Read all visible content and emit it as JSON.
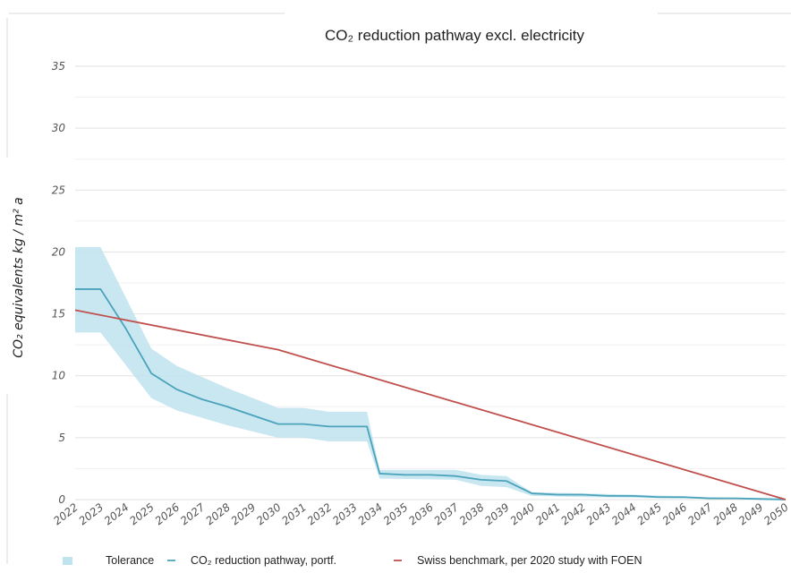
{
  "chart_data": {
    "type": "line",
    "title": "CO₂ reduction pathway  excl. electricity",
    "ylabel": "CO₂ equivalents kg / m² a",
    "xlabel": "",
    "ylim": [
      0,
      35
    ],
    "yticks": [
      0,
      5,
      10,
      15,
      20,
      25,
      30,
      35
    ],
    "x": [
      2022,
      2023,
      2024,
      2025,
      2026,
      2027,
      2028,
      2029,
      2030,
      2031,
      2032,
      2033,
      2034,
      2035,
      2036,
      2037,
      2038,
      2039,
      2040,
      2041,
      2042,
      2043,
      2044,
      2045,
      2046,
      2047,
      2048,
      2049,
      2050
    ],
    "grid": true,
    "legend_position": "bottom",
    "series": [
      {
        "name": "Tolerance",
        "kind": "band",
        "color": "#bfe3ef",
        "x": [
          2022,
          2023,
          2025,
          2026,
          2028,
          2030,
          2031,
          2032,
          2033.5,
          2034,
          2037,
          2038,
          2039,
          2040,
          2042,
          2044,
          2047,
          2050
        ],
        "upper": [
          20.4,
          20.4,
          12.2,
          10.8,
          9.0,
          7.4,
          7.4,
          7.1,
          7.1,
          2.4,
          2.4,
          2.0,
          1.9,
          0.6,
          0.5,
          0.4,
          0.2,
          0.1
        ],
        "lower": [
          13.5,
          13.5,
          8.2,
          7.2,
          6.0,
          5.0,
          5.0,
          4.7,
          4.7,
          1.7,
          1.6,
          1.1,
          1.0,
          0.3,
          0.2,
          0.15,
          0.05,
          0.0
        ]
      },
      {
        "name": "CO₂ reduction pathway, portf.",
        "kind": "line",
        "color": "#4aa3bb",
        "x": [
          2022,
          2023,
          2024,
          2025,
          2026,
          2027,
          2028,
          2029,
          2030,
          2031,
          2032,
          2033,
          2033.5,
          2034,
          2035,
          2036,
          2037,
          2038,
          2039,
          2040,
          2041,
          2042,
          2043,
          2044,
          2045,
          2046,
          2047,
          2048,
          2049,
          2050
        ],
        "values": [
          17.0,
          17.0,
          13.8,
          10.2,
          8.9,
          8.1,
          7.5,
          6.8,
          6.1,
          6.1,
          5.9,
          5.9,
          5.9,
          2.1,
          2.0,
          2.0,
          1.9,
          1.6,
          1.5,
          0.5,
          0.4,
          0.4,
          0.3,
          0.3,
          0.2,
          0.2,
          0.1,
          0.1,
          0.05,
          0.0
        ]
      },
      {
        "name": "Swiss benchmark, per 2020 study with FOEN",
        "kind": "line",
        "color": "#c0504d",
        "x": [
          2022,
          2030,
          2050
        ],
        "values": [
          15.3,
          12.1,
          0.0
        ]
      }
    ]
  }
}
